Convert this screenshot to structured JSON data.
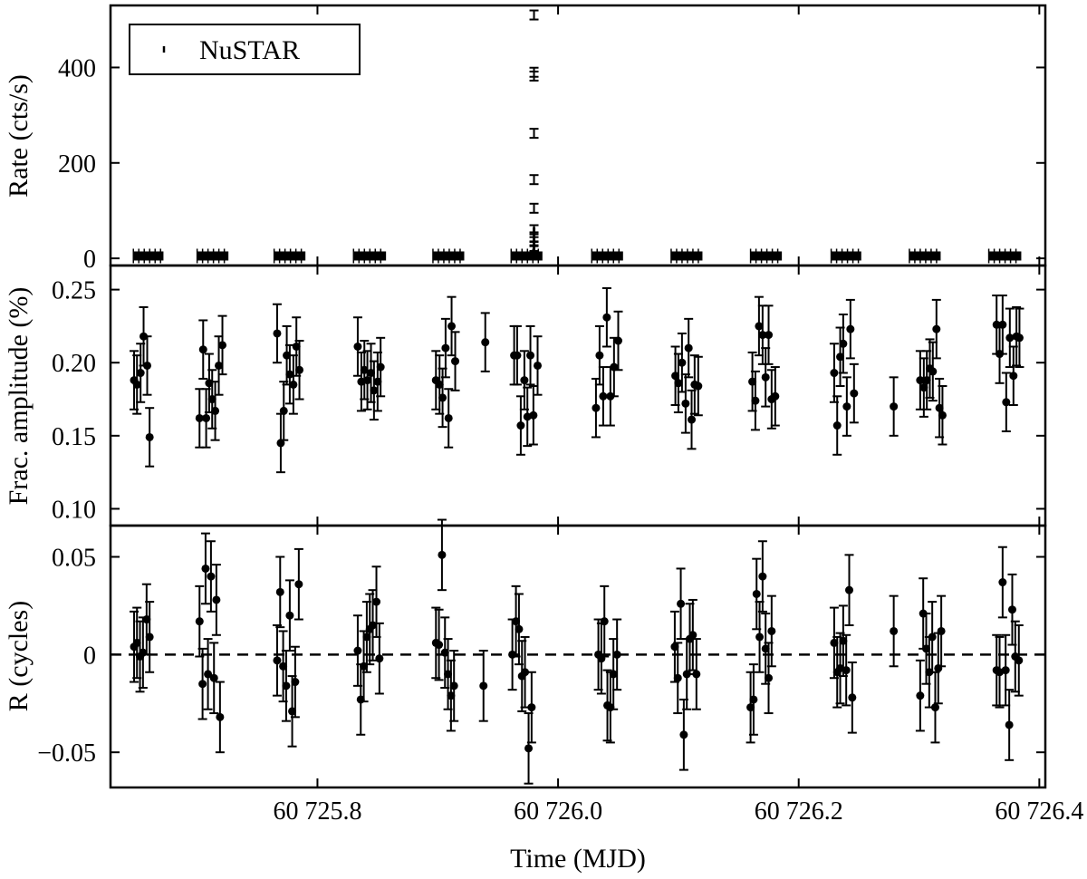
{
  "chart_data": {
    "type": "scatter",
    "x_axis": {
      "label": "Time (MJD)",
      "range": [
        60725.628,
        60726.405
      ],
      "ticks": [
        60725.8,
        60726.0,
        60726.2,
        60726.4
      ],
      "tick_labels": [
        "60 725.8",
        "60 726.0",
        "60 726.2",
        "60 726.4"
      ]
    },
    "panels": [
      {
        "id": "rate",
        "ylabel": "Rate (cts/s)",
        "ylim": [
          -15,
          530
        ],
        "yticks": [
          0,
          200,
          400
        ],
        "ytick_labels": [
          "0",
          "200",
          "400"
        ],
        "legend": {
          "label": "NuSTAR",
          "position": "top-left"
        },
        "segments": [
          {
            "x0": 60725.647,
            "x1": 60725.672,
            "y": 5
          },
          {
            "x0": 60725.7,
            "x1": 60725.726,
            "y": 5
          },
          {
            "x0": 60725.764,
            "x1": 60725.79,
            "y": 5
          },
          {
            "x0": 60725.83,
            "x1": 60725.857,
            "y": 5
          },
          {
            "x0": 60725.896,
            "x1": 60725.922,
            "y": 5
          },
          {
            "x0": 60725.961,
            "x1": 60725.987,
            "y": 5
          },
          {
            "x0": 60726.028,
            "x1": 60726.054,
            "y": 5
          },
          {
            "x0": 60726.094,
            "x1": 60726.12,
            "y": 5
          },
          {
            "x0": 60726.16,
            "x1": 60726.186,
            "y": 5
          },
          {
            "x0": 60726.227,
            "x1": 60726.252,
            "y": 5
          },
          {
            "x0": 60726.292,
            "x1": 60726.318,
            "y": 5
          },
          {
            "x0": 60726.358,
            "x1": 60726.385,
            "y": 5
          }
        ],
        "flare": {
          "x": 60725.98,
          "y": [
            510,
            390,
            382,
            262,
            165,
            105,
            60,
            45,
            35,
            25,
            18
          ]
        }
      },
      {
        "id": "frac_amplitude",
        "ylabel": "Frac. amplitude (%)",
        "ylim": [
          0.0885,
          0.2665
        ],
        "yticks": [
          0.1,
          0.15,
          0.2,
          0.25
        ],
        "ytick_labels": [
          "0.10",
          "0.15",
          "0.20",
          "0.25"
        ],
        "error": 0.02,
        "points": [
          [
            60725.6476,
            0.188
          ],
          [
            60725.65,
            0.185
          ],
          [
            60725.653,
            0.193
          ],
          [
            60725.6555,
            0.218
          ],
          [
            60725.6585,
            0.198
          ],
          [
            60725.6605,
            0.149
          ],
          [
            60725.702,
            0.162
          ],
          [
            60725.705,
            0.209
          ],
          [
            60725.7075,
            0.162
          ],
          [
            60725.71,
            0.186
          ],
          [
            60725.7125,
            0.175
          ],
          [
            60725.715,
            0.167
          ],
          [
            60725.718,
            0.198
          ],
          [
            60725.721,
            0.212
          ],
          [
            60725.7665,
            0.22
          ],
          [
            60725.7695,
            0.145
          ],
          [
            60725.772,
            0.167
          ],
          [
            60725.7745,
            0.205
          ],
          [
            60725.777,
            0.192
          ],
          [
            60725.78,
            0.185
          ],
          [
            60725.7825,
            0.211
          ],
          [
            60725.785,
            0.195
          ],
          [
            60725.8335,
            0.211
          ],
          [
            60725.8365,
            0.187
          ],
          [
            60725.839,
            0.195
          ],
          [
            60725.8415,
            0.188
          ],
          [
            60725.8445,
            0.193
          ],
          [
            60725.847,
            0.181
          ],
          [
            60725.85,
            0.187
          ],
          [
            60725.8525,
            0.197
          ],
          [
            60725.8985,
            0.188
          ],
          [
            60725.9015,
            0.185
          ],
          [
            60725.904,
            0.176
          ],
          [
            60725.9065,
            0.21
          ],
          [
            60725.909,
            0.162
          ],
          [
            60725.9115,
            0.225
          ],
          [
            60725.9145,
            0.201
          ],
          [
            60725.9395,
            0.214
          ],
          [
            60725.9635,
            0.205
          ],
          [
            60725.966,
            0.205
          ],
          [
            60725.969,
            0.157
          ],
          [
            60725.972,
            0.188
          ],
          [
            60725.9745,
            0.163
          ],
          [
            60725.977,
            0.205
          ],
          [
            60725.9795,
            0.164
          ],
          [
            60725.983,
            0.198
          ],
          [
            60726.0315,
            0.169
          ],
          [
            60726.0345,
            0.205
          ],
          [
            60726.0375,
            0.177
          ],
          [
            60726.0405,
            0.231
          ],
          [
            60726.0435,
            0.177
          ],
          [
            60726.0465,
            0.197
          ],
          [
            60726.05,
            0.215
          ],
          [
            60726.0975,
            0.191
          ],
          [
            60726.1,
            0.186
          ],
          [
            60726.103,
            0.2
          ],
          [
            60726.106,
            0.172
          ],
          [
            60726.1085,
            0.21
          ],
          [
            60726.111,
            0.161
          ],
          [
            60726.1135,
            0.185
          ],
          [
            60726.1165,
            0.184
          ],
          [
            60726.1615,
            0.187
          ],
          [
            60726.164,
            0.174
          ],
          [
            60726.167,
            0.225
          ],
          [
            60726.17,
            0.219
          ],
          [
            60726.1725,
            0.19
          ],
          [
            60726.175,
            0.219
          ],
          [
            60726.1775,
            0.175
          ],
          [
            60726.1805,
            0.177
          ],
          [
            60726.2295,
            0.193
          ],
          [
            60726.232,
            0.157
          ],
          [
            60726.2345,
            0.204
          ],
          [
            60726.237,
            0.213
          ],
          [
            60726.24,
            0.17
          ],
          [
            60726.243,
            0.223
          ],
          [
            60726.246,
            0.179
          ],
          [
            60726.279,
            0.17
          ],
          [
            60726.301,
            0.188
          ],
          [
            60726.304,
            0.183
          ],
          [
            60726.3065,
            0.188
          ],
          [
            60726.309,
            0.196
          ],
          [
            60726.3115,
            0.194
          ],
          [
            60726.3145,
            0.223
          ],
          [
            60726.317,
            0.169
          ],
          [
            60726.3195,
            0.164
          ],
          [
            60726.3645,
            0.226
          ],
          [
            60726.367,
            0.206
          ],
          [
            60726.3695,
            0.226
          ],
          [
            60726.3725,
            0.173
          ],
          [
            60726.3755,
            0.217
          ],
          [
            60726.3785,
            0.191
          ],
          [
            60726.381,
            0.218
          ],
          [
            60726.3835,
            0.217
          ]
        ]
      },
      {
        "id": "residual",
        "ylabel": "R (cycles)",
        "ylim": [
          -0.068,
          0.066
        ],
        "yticks": [
          -0.05,
          0,
          0.05
        ],
        "ytick_labels": [
          "−0.05",
          "0",
          "0.05"
        ],
        "zero_line": "dashed",
        "error": 0.018,
        "points": [
          [
            60725.6476,
            0.004
          ],
          [
            60725.65,
            0.006
          ],
          [
            60725.6525,
            -0.001
          ],
          [
            60725.655,
            0.001
          ],
          [
            60725.658,
            0.018
          ],
          [
            60725.6605,
            0.009
          ],
          [
            60725.702,
            0.017
          ],
          [
            60725.7045,
            -0.015
          ],
          [
            60725.707,
            0.044
          ],
          [
            60725.709,
            -0.01
          ],
          [
            60725.7115,
            0.04
          ],
          [
            60725.714,
            -0.012
          ],
          [
            60725.716,
            0.028
          ],
          [
            60725.719,
            -0.032
          ],
          [
            60725.7665,
            -0.003
          ],
          [
            60725.769,
            0.032
          ],
          [
            60725.7715,
            -0.006
          ],
          [
            60725.774,
            -0.016
          ],
          [
            60725.777,
            0.02
          ],
          [
            60725.779,
            -0.029
          ],
          [
            60725.7815,
            -0.014
          ],
          [
            60725.7845,
            0.036
          ],
          [
            60725.8335,
            0.002
          ],
          [
            60725.836,
            -0.023
          ],
          [
            60725.8385,
            -0.006
          ],
          [
            60725.841,
            0.009
          ],
          [
            60725.8435,
            0.013
          ],
          [
            60725.846,
            0.015
          ],
          [
            60725.849,
            0.027
          ],
          [
            60725.8515,
            -0.002
          ],
          [
            60725.8985,
            0.006
          ],
          [
            60725.901,
            0.005
          ],
          [
            60725.9035,
            0.051
          ],
          [
            60725.906,
            0.001
          ],
          [
            60725.9085,
            -0.01
          ],
          [
            60725.911,
            -0.021
          ],
          [
            60725.9135,
            -0.016
          ],
          [
            60725.938,
            -0.016
          ],
          [
            60725.962,
            0.0
          ],
          [
            60725.965,
            0.017
          ],
          [
            60725.9675,
            0.013
          ],
          [
            60725.97,
            -0.011
          ],
          [
            60725.9725,
            -0.009
          ],
          [
            60725.9755,
            -0.048
          ],
          [
            60725.978,
            -0.027
          ],
          [
            60726.0335,
            0.0
          ],
          [
            60726.036,
            -0.002
          ],
          [
            60726.0385,
            0.017
          ],
          [
            60726.041,
            -0.026
          ],
          [
            60726.0435,
            -0.027
          ],
          [
            60726.046,
            -0.01
          ],
          [
            60726.049,
            0.0
          ],
          [
            60726.097,
            0.004
          ],
          [
            60726.0995,
            -0.012
          ],
          [
            60726.102,
            0.026
          ],
          [
            60726.1045,
            -0.041
          ],
          [
            60726.107,
            -0.01
          ],
          [
            60726.1095,
            0.008
          ],
          [
            60726.112,
            0.01
          ],
          [
            60726.115,
            -0.01
          ],
          [
            60726.16,
            -0.027
          ],
          [
            60726.1625,
            -0.023
          ],
          [
            60726.165,
            0.031
          ],
          [
            60726.1675,
            0.009
          ],
          [
            60726.17,
            0.04
          ],
          [
            60726.1725,
            0.003
          ],
          [
            60726.175,
            -0.012
          ],
          [
            60726.1775,
            0.012
          ],
          [
            60726.2295,
            0.006
          ],
          [
            60726.232,
            -0.009
          ],
          [
            60726.2345,
            -0.007
          ],
          [
            60726.237,
            0.007
          ],
          [
            60726.2395,
            -0.008
          ],
          [
            60726.242,
            0.033
          ],
          [
            60726.2445,
            -0.022
          ],
          [
            60726.279,
            0.012
          ],
          [
            60726.301,
            -0.021
          ],
          [
            60726.3035,
            0.021
          ],
          [
            60726.306,
            0.003
          ],
          [
            60726.3085,
            -0.009
          ],
          [
            60726.311,
            0.009
          ],
          [
            60726.3135,
            -0.027
          ],
          [
            60726.316,
            -0.007
          ],
          [
            60726.3185,
            0.012
          ],
          [
            60726.3645,
            -0.008
          ],
          [
            60726.367,
            -0.009
          ],
          [
            60726.3695,
            0.037
          ],
          [
            60726.372,
            -0.008
          ],
          [
            60726.375,
            -0.036
          ],
          [
            60726.3775,
            0.023
          ],
          [
            60726.38,
            -0.001
          ],
          [
            60726.383,
            -0.003
          ]
        ]
      }
    ]
  }
}
